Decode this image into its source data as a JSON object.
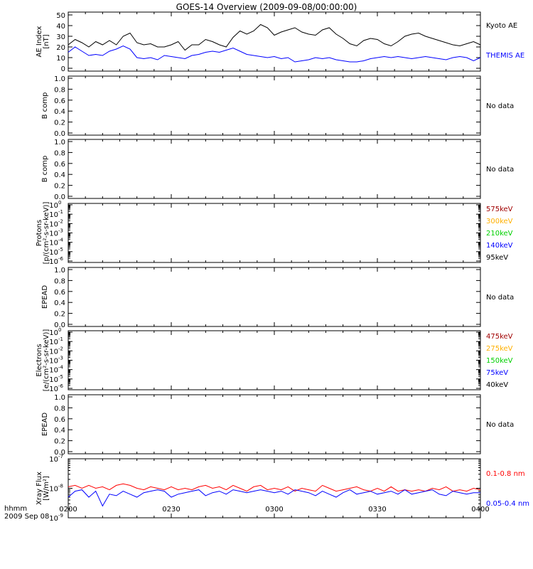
{
  "title": "GOES-14 Overview (2009-09-08/00:00:00)",
  "no_data_label": "No data",
  "footer": {
    "hhmm": "hhmm",
    "date": "2009 Sep 08"
  },
  "x_axis": {
    "ticks": [
      "0200",
      "0230",
      "0300",
      "0330",
      "0400"
    ],
    "range_minutes": [
      120,
      240
    ]
  },
  "colors": {
    "black": "#000000",
    "blue": "#0000ff",
    "red": "#ff0000",
    "dark_red": "#a00000",
    "orange": "#ffb000",
    "green": "#00d000"
  },
  "chart_data": [
    {
      "type": "line",
      "panel": "ae",
      "ylabel": [
        "AE Index",
        "[nT]"
      ],
      "ylim": [
        0,
        50
      ],
      "yticks": [
        "0",
        "10",
        "20",
        "30",
        "40",
        "50"
      ],
      "legend": [
        {
          "name": "Kyoto AE",
          "color": "#000000"
        },
        {
          "name": "THEMIS AE",
          "color": "#0000ff"
        }
      ],
      "x": [
        120,
        122,
        124,
        126,
        128,
        130,
        132,
        134,
        136,
        138,
        140,
        142,
        144,
        146,
        148,
        150,
        152,
        154,
        156,
        158,
        160,
        162,
        164,
        166,
        168,
        170,
        172,
        174,
        176,
        178,
        180,
        182,
        184,
        186,
        188,
        190,
        192,
        194,
        196,
        198,
        200,
        202,
        204,
        206,
        208,
        210,
        212,
        214,
        216,
        218,
        220,
        222,
        224,
        226,
        228,
        230,
        232,
        234,
        236,
        238,
        240
      ],
      "series": [
        {
          "name": "Kyoto AE",
          "color": "#000000",
          "values": [
            22,
            27,
            24,
            20,
            25,
            22,
            26,
            22,
            30,
            33,
            24,
            22,
            23,
            20,
            20,
            22,
            25,
            17,
            22,
            22,
            27,
            25,
            22,
            20,
            29,
            35,
            32,
            35,
            41,
            38,
            31,
            34,
            36,
            38,
            34,
            32,
            31,
            36,
            38,
            32,
            28,
            23,
            21,
            26,
            28,
            27,
            23,
            21,
            25,
            30,
            32,
            33,
            30,
            28,
            26,
            24,
            22,
            21,
            23,
            25,
            22
          ]
        },
        {
          "name": "THEMIS AE",
          "color": "#0000ff",
          "values": [
            15,
            20,
            16,
            12,
            13,
            12,
            16,
            18,
            21,
            18,
            10,
            9,
            10,
            8,
            12,
            11,
            10,
            9,
            12,
            13,
            15,
            16,
            15,
            17,
            19,
            16,
            13,
            12,
            11,
            10,
            11,
            9,
            10,
            6,
            7,
            8,
            10,
            9,
            10,
            8,
            7,
            6,
            6,
            7,
            9,
            10,
            11,
            10,
            11,
            10,
            9,
            10,
            11,
            10,
            9,
            8,
            10,
            11,
            10,
            7,
            10
          ]
        }
      ]
    },
    {
      "type": "line",
      "panel": "b1",
      "ylabel": [
        "B comp"
      ],
      "ylim": [
        0,
        1
      ],
      "yticks": [
        "0.0",
        "0.2",
        "0.4",
        "0.6",
        "0.8",
        "1.0"
      ],
      "no_data": true
    },
    {
      "type": "line",
      "panel": "b2",
      "ylabel": [
        "B comp"
      ],
      "ylim": [
        0,
        1
      ],
      "yticks": [
        "0.0",
        "0.2",
        "0.4",
        "0.6",
        "0.8",
        "1.0"
      ],
      "no_data": true
    },
    {
      "type": "line",
      "panel": "protons",
      "ylabel": [
        "Protons",
        "[p/(cm²-s-sr-keV)]"
      ],
      "log_scale": true,
      "yticks_exp": [
        "0",
        "-1",
        "-2",
        "-3",
        "-4",
        "-5",
        "-6"
      ],
      "legend": [
        {
          "name": "575keV",
          "color": "#a00000"
        },
        {
          "name": "300keV",
          "color": "#ffb000"
        },
        {
          "name": "210keV",
          "color": "#00d000"
        },
        {
          "name": "140keV",
          "color": "#0000ff"
        },
        {
          "name": "95keV",
          "color": "#000000"
        }
      ]
    },
    {
      "type": "line",
      "panel": "epead1",
      "ylabel": [
        "EPEAD"
      ],
      "ylim": [
        0,
        1
      ],
      "yticks": [
        "0.0",
        "0.2",
        "0.4",
        "0.6",
        "0.8",
        "1.0"
      ],
      "no_data": true
    },
    {
      "type": "line",
      "panel": "electrons",
      "ylabel": [
        "Electrons",
        "[e/(cm²-s-sr-keV)]"
      ],
      "log_scale": true,
      "yticks_exp": [
        "0",
        "-1",
        "-2",
        "-3",
        "-4",
        "-5",
        "-6"
      ],
      "legend": [
        {
          "name": "475keV",
          "color": "#a00000"
        },
        {
          "name": "275keV",
          "color": "#ffb000"
        },
        {
          "name": "150keV",
          "color": "#00d000"
        },
        {
          "name": "75keV",
          "color": "#0000ff"
        },
        {
          "name": "40keV",
          "color": "#000000"
        }
      ]
    },
    {
      "type": "line",
      "panel": "epead2",
      "ylabel": [
        "EPEAD"
      ],
      "ylim": [
        0,
        1
      ],
      "yticks": [
        "0.0",
        "0.2",
        "0.4",
        "0.6",
        "0.8",
        "1.0"
      ],
      "no_data": true
    },
    {
      "type": "line",
      "panel": "xray",
      "ylabel": [
        "Xray Flux",
        "[W/m²]"
      ],
      "log_scale": true,
      "ylim_exp": [
        -9,
        -7
      ],
      "yticks_exp": [
        "-9",
        "-8",
        "-7"
      ],
      "legend": [
        {
          "name": "0.1-0.8 nm",
          "color": "#ff0000"
        },
        {
          "name": "0.05-0.4 nm",
          "color": "#0000ff"
        }
      ],
      "x": [
        120,
        122,
        124,
        126,
        128,
        130,
        132,
        134,
        136,
        138,
        140,
        142,
        144,
        146,
        148,
        150,
        152,
        154,
        156,
        158,
        160,
        162,
        164,
        166,
        168,
        170,
        172,
        174,
        176,
        178,
        180,
        182,
        184,
        186,
        188,
        190,
        192,
        194,
        196,
        198,
        200,
        202,
        204,
        206,
        208,
        210,
        212,
        214,
        216,
        218,
        220,
        222,
        224,
        226,
        228,
        230,
        232,
        234,
        236,
        238,
        240
      ],
      "series": [
        {
          "name": "0.1-0.8 nm",
          "color": "#ff0000",
          "log10_values": [
            -7.95,
            -7.9,
            -8.0,
            -7.9,
            -8.0,
            -7.95,
            -8.05,
            -7.9,
            -7.85,
            -7.9,
            -8.0,
            -8.05,
            -7.95,
            -8.0,
            -8.05,
            -7.95,
            -8.05,
            -8.0,
            -8.05,
            -7.95,
            -7.9,
            -8.0,
            -7.95,
            -8.05,
            -7.9,
            -8.0,
            -8.1,
            -7.95,
            -7.9,
            -8.05,
            -8.0,
            -8.05,
            -7.95,
            -8.1,
            -8.0,
            -8.05,
            -8.1,
            -7.9,
            -8.0,
            -8.1,
            -8.05,
            -8.0,
            -7.95,
            -8.05,
            -8.1,
            -8.0,
            -8.1,
            -7.95,
            -8.1,
            -8.05,
            -8.1,
            -8.05,
            -8.1,
            -8.0,
            -8.05,
            -7.95,
            -8.1,
            -8.05,
            -8.1,
            -8.0,
            -8.05
          ]
        },
        {
          "name": "0.05-0.4 nm",
          "color": "#0000ff",
          "log10_values": [
            -8.3,
            -8.1,
            -8.05,
            -8.3,
            -8.1,
            -8.6,
            -8.2,
            -8.25,
            -8.1,
            -8.2,
            -8.3,
            -8.15,
            -8.1,
            -8.05,
            -8.1,
            -8.3,
            -8.2,
            -8.15,
            -8.1,
            -8.05,
            -8.25,
            -8.15,
            -8.1,
            -8.2,
            -8.05,
            -8.1,
            -8.15,
            -8.1,
            -8.05,
            -8.1,
            -8.15,
            -8.1,
            -8.2,
            -8.05,
            -8.1,
            -8.15,
            -8.25,
            -8.1,
            -8.2,
            -8.3,
            -8.15,
            -8.05,
            -8.2,
            -8.15,
            -8.1,
            -8.2,
            -8.15,
            -8.1,
            -8.2,
            -8.05,
            -8.2,
            -8.15,
            -8.1,
            -8.05,
            -8.2,
            -8.25,
            -8.1,
            -8.15,
            -8.2,
            -8.15,
            -8.15
          ]
        }
      ]
    }
  ]
}
